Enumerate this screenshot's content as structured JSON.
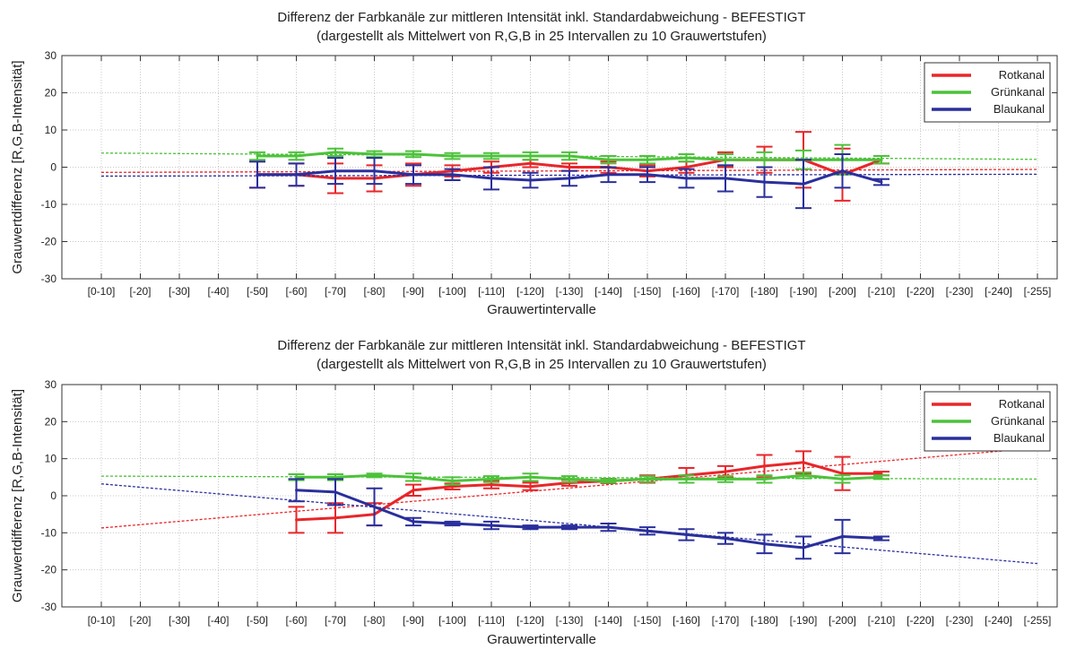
{
  "chart_data": [
    {
      "type": "line",
      "title": "Differenz der Farbkanäle zur mittleren Intensität inkl. Standardabweichung - BEFESTIGT",
      "subtitle": "(dargestellt als Mittelwert von R,G,B in 25 Intervallen zu 10 Grauwertstufen)",
      "xlabel": "Grauwertintervalle",
      "ylabel": "Grauwertdifferenz [R,G,B-Intensität]",
      "categories": [
        "[0-10]",
        "[-20]",
        "[-30]",
        "[-40]",
        "[-50]",
        "[-60]",
        "[-70]",
        "[-80]",
        "[-90]",
        "[-100]",
        "[-110]",
        "[-120]",
        "[-130]",
        "[-140]",
        "[-150]",
        "[-160]",
        "[-170]",
        "[-180]",
        "[-190]",
        "[-200]",
        "[-210]",
        "[-220]",
        "[-230]",
        "[-240]",
        "[-255]"
      ],
      "ylim": [
        -30,
        30
      ],
      "yticks": [
        -30,
        -20,
        -10,
        0,
        10,
        20,
        30
      ],
      "grid": true,
      "legend": "top-right",
      "series": [
        {
          "name": "Rotkanal",
          "color": "#e8262a",
          "values": [
            null,
            null,
            null,
            null,
            -2,
            -2,
            -3,
            -3,
            -2,
            -1,
            0,
            1,
            0,
            0,
            -1,
            0,
            2,
            2,
            2,
            -2,
            2,
            null,
            null,
            null,
            null
          ],
          "errors": [
            null,
            null,
            null,
            null,
            3.5,
            3,
            4,
            3.5,
            3,
            1.5,
            1.5,
            1,
            1,
            1.5,
            1.5,
            1.5,
            2,
            3.5,
            7.5,
            7,
            1,
            null,
            null,
            null,
            null
          ],
          "trend": [
            -1.4,
            -0.6
          ]
        },
        {
          "name": "Grünkanal",
          "color": "#4cc23a",
          "values": [
            null,
            null,
            null,
            null,
            3,
            3,
            4,
            3.5,
            3.5,
            3,
            3,
            3,
            3,
            2,
            2,
            2.5,
            2,
            2,
            2,
            2,
            2,
            null,
            null,
            null,
            null
          ],
          "errors": [
            null,
            null,
            null,
            null,
            1,
            1,
            1,
            0.8,
            0.8,
            0.8,
            0.8,
            1,
            1,
            1,
            1,
            1,
            1.5,
            2,
            2.5,
            4,
            1,
            null,
            null,
            null,
            null
          ],
          "trend": [
            3.8,
            2.1
          ]
        },
        {
          "name": "Blaukanal",
          "color": "#2a2f9c",
          "values": [
            null,
            null,
            null,
            null,
            -2,
            -2,
            -1,
            -1,
            -2,
            -2,
            -3,
            -3.5,
            -3,
            -2,
            -2,
            -3,
            -3,
            -4,
            -4.5,
            -1,
            -4,
            null,
            null,
            null,
            null
          ],
          "errors": [
            null,
            null,
            null,
            null,
            3.5,
            3,
            3.5,
            3.5,
            2.5,
            1.5,
            3,
            2,
            2,
            2,
            2,
            2.5,
            3.5,
            4,
            6.5,
            4.5,
            0.8,
            null,
            null,
            null,
            null
          ],
          "trend": [
            -2.4,
            -1.9
          ]
        }
      ]
    },
    {
      "type": "line",
      "title": "Differenz der Farbkanäle zur mittleren Intensität inkl. Standardabweichung - BEFESTIGT",
      "subtitle": "(dargestellt als Mittelwert von R,G,B in 25 Intervallen zu 10 Grauwertstufen)",
      "xlabel": "Grauwertintervalle",
      "ylabel": "Grauwertdifferenz [R,G,B-Intensität]",
      "categories": [
        "[0-10]",
        "[-20]",
        "[-30]",
        "[-40]",
        "[-50]",
        "[-60]",
        "[-70]",
        "[-80]",
        "[-90]",
        "[-100]",
        "[-110]",
        "[-120]",
        "[-130]",
        "[-140]",
        "[-150]",
        "[-160]",
        "[-170]",
        "[-180]",
        "[-190]",
        "[-200]",
        "[-210]",
        "[-220]",
        "[-230]",
        "[-240]",
        "[-255]"
      ],
      "ylim": [
        -30,
        30
      ],
      "yticks": [
        -30,
        -20,
        -10,
        0,
        10,
        20,
        30
      ],
      "grid": true,
      "legend": "top-right",
      "series": [
        {
          "name": "Rotkanal",
          "color": "#e8262a",
          "values": [
            null,
            null,
            null,
            null,
            null,
            -6.5,
            -6,
            -5,
            1.5,
            2.5,
            3,
            2.5,
            3.5,
            4,
            4.5,
            5.5,
            6.5,
            8,
            9,
            6,
            6,
            null,
            null,
            null,
            null
          ],
          "errors": [
            null,
            null,
            null,
            null,
            null,
            3.5,
            4,
            3,
            1.5,
            0.8,
            1,
            1,
            0.8,
            0.6,
            1,
            2,
            1.5,
            3,
            3,
            4.5,
            0.5,
            null,
            null,
            null,
            null
          ],
          "trend": [
            -8.7,
            12.9
          ]
        },
        {
          "name": "Grünkanal",
          "color": "#4cc23a",
          "values": [
            null,
            null,
            null,
            null,
            null,
            5,
            5,
            5.5,
            5,
            4,
            4.5,
            5,
            4.5,
            4,
            4.5,
            4.5,
            4.5,
            4.5,
            5.5,
            4.5,
            5,
            null,
            null,
            null,
            null
          ],
          "errors": [
            null,
            null,
            null,
            null,
            null,
            0.8,
            0.8,
            0.5,
            1,
            1,
            0.8,
            1,
            0.8,
            0.5,
            0.8,
            1,
            0.8,
            1,
            0.8,
            1,
            0.5,
            null,
            null,
            null,
            null
          ],
          "trend": [
            5.3,
            4.5
          ]
        },
        {
          "name": "Blaukanal",
          "color": "#2a2f9c",
          "values": [
            null,
            null,
            null,
            null,
            null,
            1.5,
            1,
            -3,
            -7,
            -7.5,
            -8,
            -8.5,
            -8.5,
            -8.5,
            -9.5,
            -10.5,
            -11.5,
            -13,
            -14,
            -11,
            -11.5,
            null,
            null,
            null,
            null
          ],
          "errors": [
            null,
            null,
            null,
            null,
            null,
            3,
            3.5,
            5,
            1,
            0.5,
            1,
            0.5,
            0.5,
            1,
            1,
            1.5,
            1.5,
            2.5,
            3,
            4.5,
            0.5,
            null,
            null,
            null,
            null
          ],
          "trend": [
            3.2,
            -18.3
          ]
        }
      ]
    }
  ]
}
